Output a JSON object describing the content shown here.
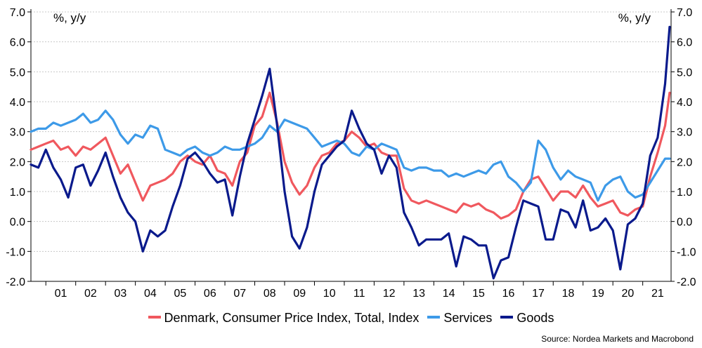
{
  "chart_data": {
    "type": "line",
    "units_left": "%, y/y",
    "units_right": "%, y/y",
    "ylim": [
      -2.0,
      7.0
    ],
    "ytick_labels": [
      "-2.0",
      "-1.0",
      "0.0",
      "1.0",
      "2.0",
      "3.0",
      "4.0",
      "5.0",
      "6.0",
      "7.0"
    ],
    "x_tick_labels": [
      "01",
      "02",
      "03",
      "04",
      "05",
      "06",
      "07",
      "08",
      "09",
      "10",
      "11",
      "12",
      "13",
      "14",
      "15",
      "16",
      "17",
      "18",
      "19",
      "20",
      "21"
    ],
    "x_range": [
      2000.5,
      2021.95
    ],
    "grid": "horizontal",
    "legend_position": "bottom",
    "series": [
      {
        "name": "Denmark, Consumer Price Index, Total, Index",
        "color": "#F0585E",
        "points": [
          [
            2000.5,
            2.4
          ],
          [
            2000.75,
            2.5
          ],
          [
            2001,
            2.6
          ],
          [
            2001.25,
            2.7
          ],
          [
            2001.5,
            2.4
          ],
          [
            2001.75,
            2.5
          ],
          [
            2002,
            2.2
          ],
          [
            2002.25,
            2.5
          ],
          [
            2002.5,
            2.4
          ],
          [
            2002.75,
            2.6
          ],
          [
            2003,
            2.8
          ],
          [
            2003.25,
            2.2
          ],
          [
            2003.5,
            1.6
          ],
          [
            2003.75,
            1.9
          ],
          [
            2004,
            1.3
          ],
          [
            2004.25,
            0.7
          ],
          [
            2004.5,
            1.2
          ],
          [
            2004.75,
            1.3
          ],
          [
            2005,
            1.4
          ],
          [
            2005.25,
            1.6
          ],
          [
            2005.5,
            2.0
          ],
          [
            2005.75,
            2.2
          ],
          [
            2006,
            2.0
          ],
          [
            2006.25,
            1.9
          ],
          [
            2006.5,
            2.2
          ],
          [
            2006.75,
            1.7
          ],
          [
            2007,
            1.6
          ],
          [
            2007.25,
            1.2
          ],
          [
            2007.5,
            2.0
          ],
          [
            2007.75,
            2.3
          ],
          [
            2008,
            3.2
          ],
          [
            2008.25,
            3.5
          ],
          [
            2008.5,
            4.3
          ],
          [
            2008.75,
            3.3
          ],
          [
            2009,
            2.0
          ],
          [
            2009.25,
            1.3
          ],
          [
            2009.5,
            0.9
          ],
          [
            2009.75,
            1.2
          ],
          [
            2010,
            1.8
          ],
          [
            2010.25,
            2.2
          ],
          [
            2010.5,
            2.3
          ],
          [
            2010.75,
            2.6
          ],
          [
            2011,
            2.7
          ],
          [
            2011.25,
            3.0
          ],
          [
            2011.5,
            2.8
          ],
          [
            2011.75,
            2.5
          ],
          [
            2012,
            2.6
          ],
          [
            2012.25,
            2.3
          ],
          [
            2012.5,
            2.2
          ],
          [
            2012.75,
            2.2
          ],
          [
            2013,
            1.1
          ],
          [
            2013.25,
            0.7
          ],
          [
            2013.5,
            0.6
          ],
          [
            2013.75,
            0.7
          ],
          [
            2014,
            0.6
          ],
          [
            2014.25,
            0.5
          ],
          [
            2014.5,
            0.4
          ],
          [
            2014.75,
            0.3
          ],
          [
            2015,
            0.6
          ],
          [
            2015.25,
            0.5
          ],
          [
            2015.5,
            0.6
          ],
          [
            2015.75,
            0.4
          ],
          [
            2016,
            0.3
          ],
          [
            2016.25,
            0.1
          ],
          [
            2016.5,
            0.2
          ],
          [
            2016.75,
            0.4
          ],
          [
            2017,
            1.0
          ],
          [
            2017.25,
            1.4
          ],
          [
            2017.5,
            1.5
          ],
          [
            2017.75,
            1.1
          ],
          [
            2018,
            0.7
          ],
          [
            2018.25,
            1.0
          ],
          [
            2018.5,
            1.0
          ],
          [
            2018.75,
            0.8
          ],
          [
            2019,
            1.2
          ],
          [
            2019.25,
            0.8
          ],
          [
            2019.5,
            0.5
          ],
          [
            2019.75,
            0.6
          ],
          [
            2020,
            0.7
          ],
          [
            2020.25,
            0.3
          ],
          [
            2020.5,
            0.2
          ],
          [
            2020.75,
            0.4
          ],
          [
            2021,
            0.5
          ],
          [
            2021.25,
            1.5
          ],
          [
            2021.5,
            2.3
          ],
          [
            2021.75,
            3.2
          ],
          [
            2021.9,
            4.3
          ]
        ]
      },
      {
        "name": "Services",
        "color": "#3D9AE8",
        "points": [
          [
            2000.5,
            3.0
          ],
          [
            2000.75,
            3.1
          ],
          [
            2001,
            3.1
          ],
          [
            2001.25,
            3.3
          ],
          [
            2001.5,
            3.2
          ],
          [
            2001.75,
            3.3
          ],
          [
            2002,
            3.4
          ],
          [
            2002.25,
            3.6
          ],
          [
            2002.5,
            3.3
          ],
          [
            2002.75,
            3.4
          ],
          [
            2003,
            3.7
          ],
          [
            2003.25,
            3.4
          ],
          [
            2003.5,
            2.9
          ],
          [
            2003.75,
            2.6
          ],
          [
            2004,
            2.9
          ],
          [
            2004.25,
            2.8
          ],
          [
            2004.5,
            3.2
          ],
          [
            2004.75,
            3.1
          ],
          [
            2005,
            2.4
          ],
          [
            2005.25,
            2.3
          ],
          [
            2005.5,
            2.2
          ],
          [
            2005.75,
            2.4
          ],
          [
            2006,
            2.5
          ],
          [
            2006.25,
            2.3
          ],
          [
            2006.5,
            2.2
          ],
          [
            2006.75,
            2.3
          ],
          [
            2007,
            2.5
          ],
          [
            2007.25,
            2.4
          ],
          [
            2007.5,
            2.4
          ],
          [
            2007.75,
            2.5
          ],
          [
            2008,
            2.6
          ],
          [
            2008.25,
            2.8
          ],
          [
            2008.5,
            3.2
          ],
          [
            2008.75,
            3.0
          ],
          [
            2009,
            3.4
          ],
          [
            2009.25,
            3.3
          ],
          [
            2009.5,
            3.2
          ],
          [
            2009.75,
            3.1
          ],
          [
            2010,
            2.8
          ],
          [
            2010.25,
            2.5
          ],
          [
            2010.5,
            2.6
          ],
          [
            2010.75,
            2.7
          ],
          [
            2011,
            2.6
          ],
          [
            2011.25,
            2.3
          ],
          [
            2011.5,
            2.2
          ],
          [
            2011.75,
            2.5
          ],
          [
            2012,
            2.4
          ],
          [
            2012.25,
            2.6
          ],
          [
            2012.5,
            2.5
          ],
          [
            2012.75,
            2.4
          ],
          [
            2013,
            1.8
          ],
          [
            2013.25,
            1.7
          ],
          [
            2013.5,
            1.8
          ],
          [
            2013.75,
            1.8
          ],
          [
            2014,
            1.7
          ],
          [
            2014.25,
            1.7
          ],
          [
            2014.5,
            1.5
          ],
          [
            2014.75,
            1.6
          ],
          [
            2015,
            1.5
          ],
          [
            2015.25,
            1.6
          ],
          [
            2015.5,
            1.7
          ],
          [
            2015.75,
            1.6
          ],
          [
            2016,
            1.9
          ],
          [
            2016.25,
            2.0
          ],
          [
            2016.5,
            1.5
          ],
          [
            2016.75,
            1.3
          ],
          [
            2017,
            1.0
          ],
          [
            2017.25,
            1.3
          ],
          [
            2017.5,
            2.7
          ],
          [
            2017.75,
            2.4
          ],
          [
            2018,
            1.8
          ],
          [
            2018.25,
            1.4
          ],
          [
            2018.5,
            1.7
          ],
          [
            2018.75,
            1.5
          ],
          [
            2019,
            1.4
          ],
          [
            2019.25,
            1.3
          ],
          [
            2019.5,
            0.7
          ],
          [
            2019.75,
            1.2
          ],
          [
            2020,
            1.4
          ],
          [
            2020.25,
            1.5
          ],
          [
            2020.5,
            1.0
          ],
          [
            2020.75,
            0.8
          ],
          [
            2021,
            0.9
          ],
          [
            2021.25,
            1.3
          ],
          [
            2021.5,
            1.7
          ],
          [
            2021.75,
            2.1
          ],
          [
            2021.9,
            2.1
          ]
        ]
      },
      {
        "name": "Goods",
        "color": "#0A1A8C",
        "points": [
          [
            2000.5,
            1.9
          ],
          [
            2000.75,
            1.8
          ],
          [
            2001,
            2.4
          ],
          [
            2001.25,
            1.8
          ],
          [
            2001.5,
            1.4
          ],
          [
            2001.75,
            0.8
          ],
          [
            2002,
            1.8
          ],
          [
            2002.25,
            1.9
          ],
          [
            2002.5,
            1.2
          ],
          [
            2002.75,
            1.7
          ],
          [
            2003,
            2.3
          ],
          [
            2003.25,
            1.5
          ],
          [
            2003.5,
            0.8
          ],
          [
            2003.75,
            0.3
          ],
          [
            2004,
            0.0
          ],
          [
            2004.25,
            -1.0
          ],
          [
            2004.5,
            -0.3
          ],
          [
            2004.75,
            -0.5
          ],
          [
            2005,
            -0.3
          ],
          [
            2005.25,
            0.5
          ],
          [
            2005.5,
            1.2
          ],
          [
            2005.75,
            2.1
          ],
          [
            2006,
            2.3
          ],
          [
            2006.25,
            2.0
          ],
          [
            2006.5,
            1.6
          ],
          [
            2006.75,
            1.3
          ],
          [
            2007,
            1.4
          ],
          [
            2007.25,
            0.2
          ],
          [
            2007.5,
            1.5
          ],
          [
            2007.75,
            2.6
          ],
          [
            2008,
            3.4
          ],
          [
            2008.25,
            4.2
          ],
          [
            2008.5,
            5.1
          ],
          [
            2008.75,
            3.2
          ],
          [
            2009,
            1.0
          ],
          [
            2009.25,
            -0.5
          ],
          [
            2009.5,
            -0.9
          ],
          [
            2009.75,
            -0.2
          ],
          [
            2010,
            1.0
          ],
          [
            2010.25,
            1.9
          ],
          [
            2010.5,
            2.2
          ],
          [
            2010.75,
            2.5
          ],
          [
            2011,
            2.7
          ],
          [
            2011.25,
            3.7
          ],
          [
            2011.5,
            3.1
          ],
          [
            2011.75,
            2.6
          ],
          [
            2012,
            2.4
          ],
          [
            2012.25,
            1.6
          ],
          [
            2012.5,
            2.2
          ],
          [
            2012.75,
            1.8
          ],
          [
            2013,
            0.3
          ],
          [
            2013.25,
            -0.2
          ],
          [
            2013.5,
            -0.8
          ],
          [
            2013.75,
            -0.6
          ],
          [
            2014,
            -0.6
          ],
          [
            2014.25,
            -0.6
          ],
          [
            2014.5,
            -0.4
          ],
          [
            2014.75,
            -1.5
          ],
          [
            2015,
            -0.5
          ],
          [
            2015.25,
            -0.6
          ],
          [
            2015.5,
            -0.8
          ],
          [
            2015.75,
            -0.8
          ],
          [
            2016,
            -1.9
          ],
          [
            2016.25,
            -1.3
          ],
          [
            2016.5,
            -1.2
          ],
          [
            2016.75,
            -0.2
          ],
          [
            2017,
            0.7
          ],
          [
            2017.25,
            0.6
          ],
          [
            2017.5,
            0.5
          ],
          [
            2017.75,
            -0.6
          ],
          [
            2018,
            -0.6
          ],
          [
            2018.25,
            0.4
          ],
          [
            2018.5,
            0.3
          ],
          [
            2018.75,
            -0.2
          ],
          [
            2019,
            0.7
          ],
          [
            2019.25,
            -0.3
          ],
          [
            2019.5,
            -0.2
          ],
          [
            2019.75,
            0.1
          ],
          [
            2020,
            -0.3
          ],
          [
            2020.25,
            -1.6
          ],
          [
            2020.5,
            -0.1
          ],
          [
            2020.75,
            0.1
          ],
          [
            2021,
            0.6
          ],
          [
            2021.25,
            2.2
          ],
          [
            2021.5,
            2.8
          ],
          [
            2021.75,
            4.6
          ],
          [
            2021.9,
            6.5
          ]
        ]
      }
    ]
  },
  "source": "Source: Nordea Markets and Macrobond"
}
